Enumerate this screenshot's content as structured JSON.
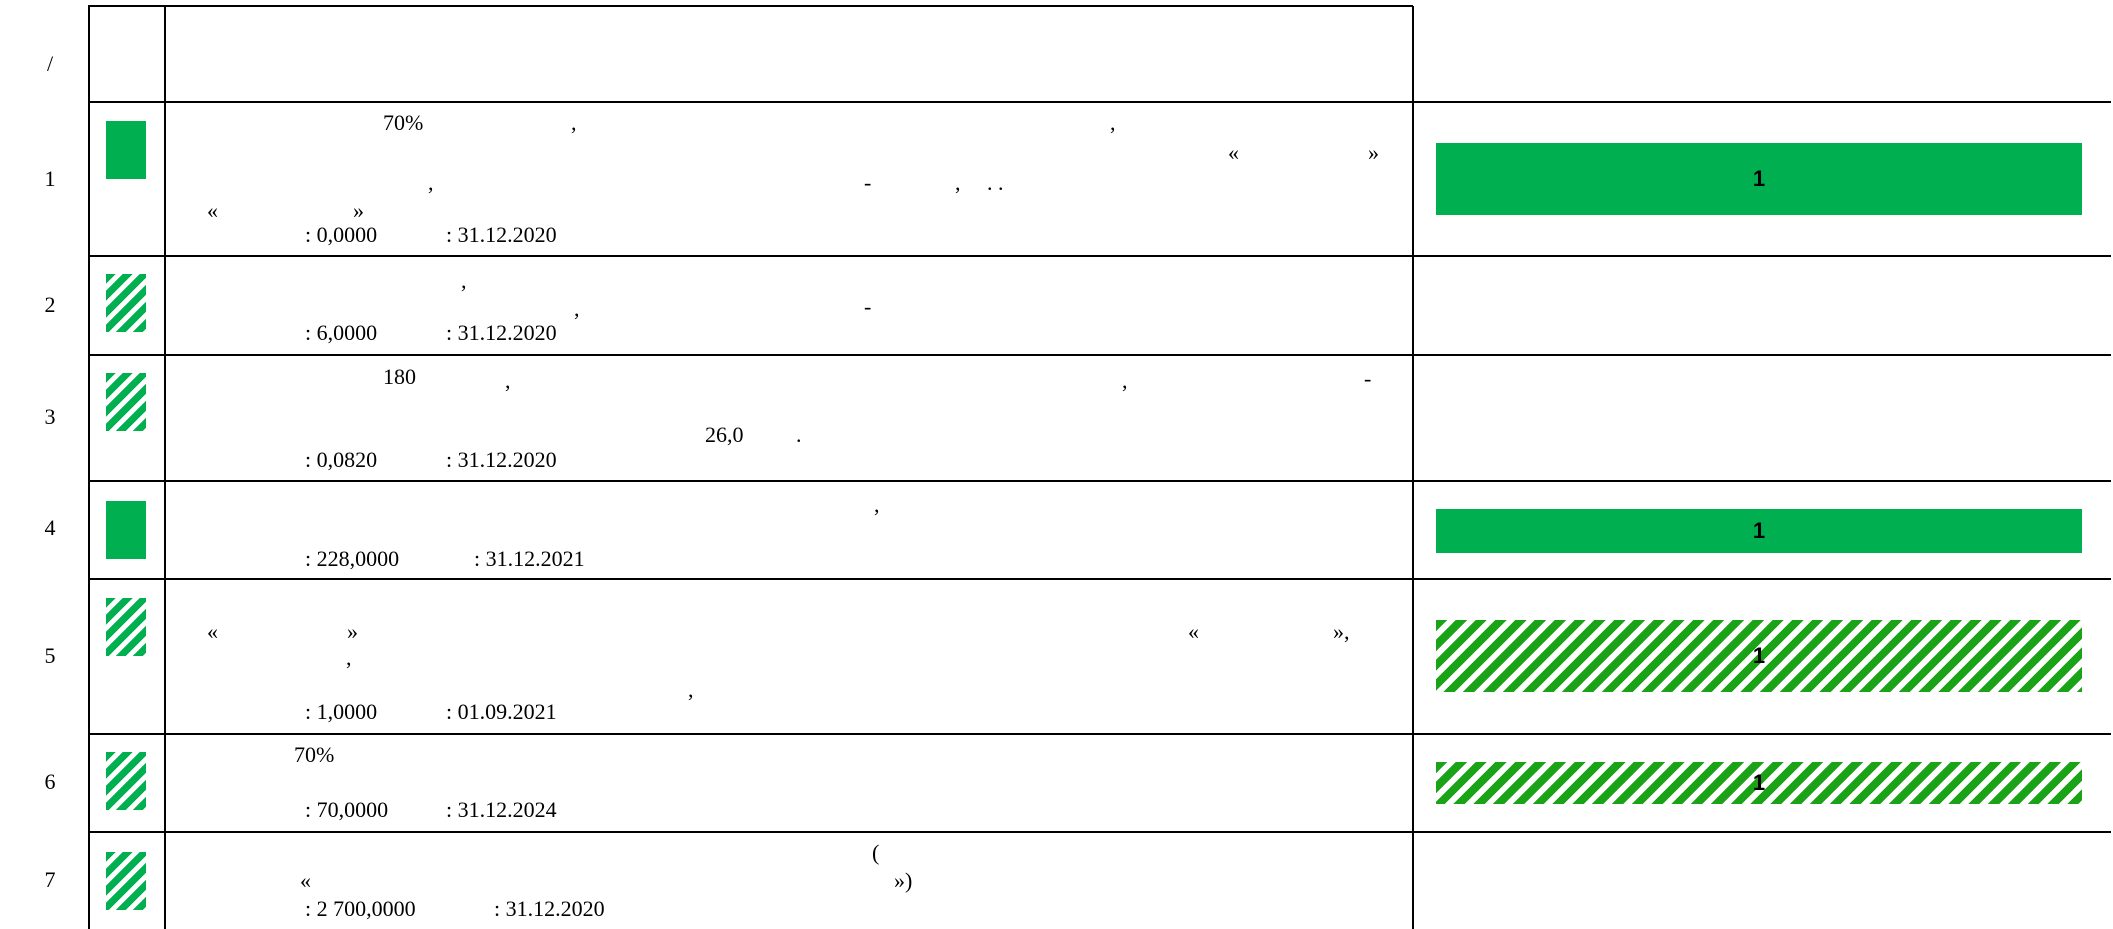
{
  "header": {
    "col_num": "/"
  },
  "colors": {
    "green": "#00b050",
    "green_hatch": "#1aa317"
  },
  "rows": [
    {
      "num": "1",
      "marker": "solid",
      "texts": [
        "70%",
        ",",
        ",",
        "«",
        "»",
        ",",
        "-",
        ",",
        ". .",
        "«",
        "»",
        ": 0,0000",
        ": 31.12.2020"
      ],
      "bar": {
        "style": "solid",
        "label": "1"
      }
    },
    {
      "num": "2",
      "marker": "hatched",
      "texts": [
        ",",
        ",",
        "-",
        ": 6,0000",
        ": 31.12.2020"
      ]
    },
    {
      "num": "3",
      "marker": "hatched",
      "texts": [
        "180",
        ",",
        ",",
        "-",
        "26,0",
        ".",
        ": 0,0820",
        ": 31.12.2020"
      ]
    },
    {
      "num": "4",
      "marker": "solid",
      "texts": [
        ",",
        ": 228,0000",
        ": 31.12.2021"
      ],
      "bar": {
        "style": "solid",
        "label": "1"
      }
    },
    {
      "num": "5",
      "marker": "hatched",
      "texts": [
        "«",
        "»",
        "«",
        "»,",
        ",",
        ",",
        ": 1,0000",
        ": 01.09.2021"
      ],
      "bar": {
        "style": "hatched",
        "label": "1"
      }
    },
    {
      "num": "6",
      "marker": "hatched",
      "texts": [
        "70%",
        ": 70,0000",
        ": 31.12.2024"
      ],
      "bar": {
        "style": "hatched",
        "label": "1"
      }
    },
    {
      "num": "7",
      "marker": "hatched",
      "texts": [
        "(",
        "«",
        "»)",
        ": 2 700,0000",
        ": 31.12.2020"
      ]
    }
  ]
}
